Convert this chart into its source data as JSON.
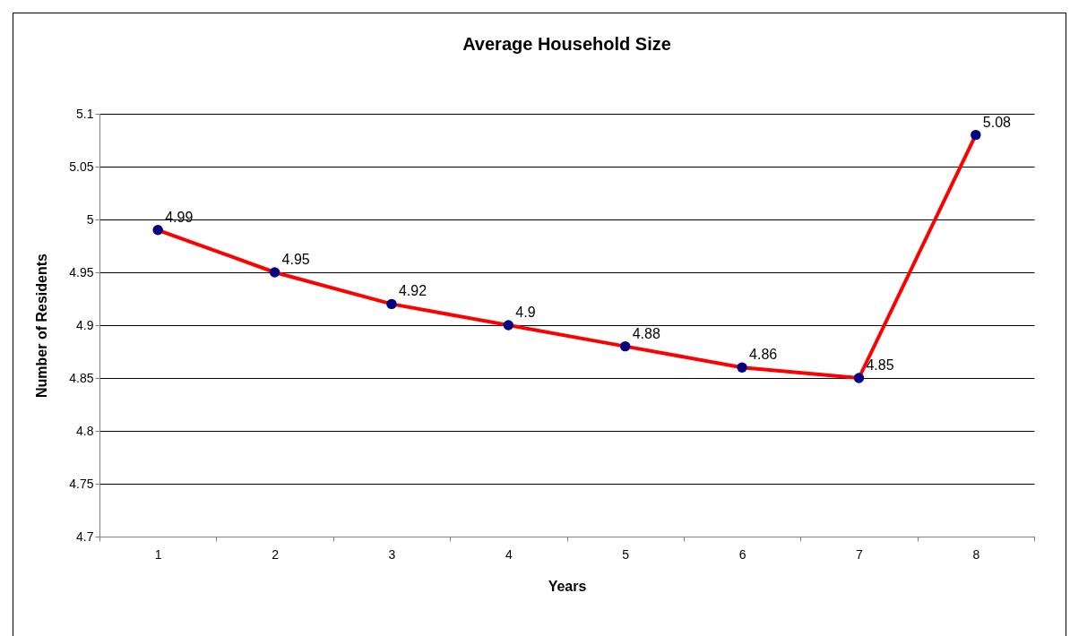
{
  "chart_data": {
    "type": "line",
    "title": "Average Household Size",
    "xlabel": "Years",
    "ylabel": "Number of Residents",
    "categories": [
      "1",
      "2",
      "3",
      "4",
      "5",
      "6",
      "7",
      "8"
    ],
    "series": [
      {
        "color": "#ff0000",
        "values": [
          4.99,
          4.95,
          4.92,
          4.9,
          4.88,
          4.86,
          4.85,
          5.08
        ]
      }
    ],
    "ylim": [
      4.7,
      5.1
    ],
    "yticks": [
      4.7,
      4.75,
      4.8,
      4.85,
      4.9,
      4.95,
      5,
      5.05,
      5.1
    ],
    "grid": "y",
    "marker": "circle",
    "data_labels": true
  }
}
